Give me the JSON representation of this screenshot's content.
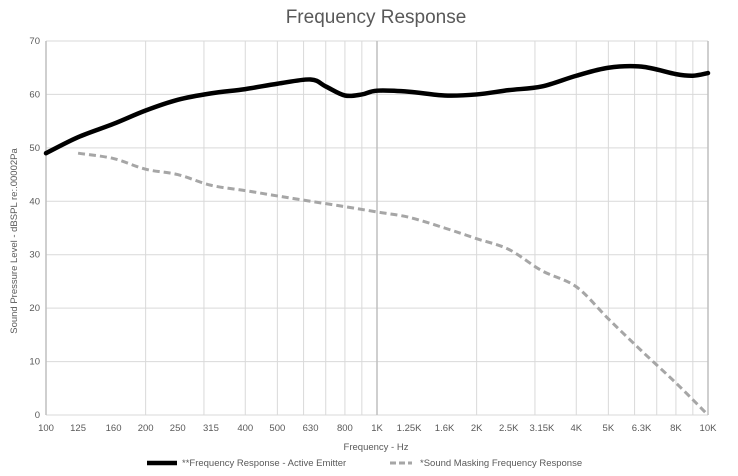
{
  "chart_data": {
    "type": "line",
    "title": "Frequency Response",
    "xlabel": "Frequency - Hz",
    "ylabel": "Sound Pressure Level - dBSPL re:.00002Pa",
    "x_scale": "log",
    "xlim": [
      100,
      10000
    ],
    "ylim": [
      0,
      70
    ],
    "y_ticks": [
      0,
      10,
      20,
      30,
      40,
      50,
      60,
      70
    ],
    "x_ticks": [
      {
        "value": 100,
        "label": "100"
      },
      {
        "value": 125,
        "label": "125"
      },
      {
        "value": 160,
        "label": "160"
      },
      {
        "value": 200,
        "label": "200"
      },
      {
        "value": 250,
        "label": "250"
      },
      {
        "value": 315,
        "label": "315"
      },
      {
        "value": 400,
        "label": "400"
      },
      {
        "value": 500,
        "label": "500"
      },
      {
        "value": 630,
        "label": "630"
      },
      {
        "value": 800,
        "label": "800"
      },
      {
        "value": 1000,
        "label": "1K"
      },
      {
        "value": 1250,
        "label": "1.25K"
      },
      {
        "value": 1600,
        "label": "1.6K"
      },
      {
        "value": 2000,
        "label": "2K"
      },
      {
        "value": 2500,
        "label": "2.5K"
      },
      {
        "value": 3150,
        "label": "3.15K"
      },
      {
        "value": 4000,
        "label": "4K"
      },
      {
        "value": 5000,
        "label": "5K"
      },
      {
        "value": 6300,
        "label": "6.3K"
      },
      {
        "value": 8000,
        "label": "8K"
      },
      {
        "value": 10000,
        "label": "10K"
      }
    ],
    "grid": true,
    "legend_position": "bottom",
    "series": [
      {
        "name": "**Frequency Response - Active Emitter",
        "color": "#000000",
        "style": "solid",
        "x": [
          100,
          125,
          160,
          200,
          250,
          315,
          400,
          500,
          630,
          700,
          800,
          900,
          1000,
          1250,
          1600,
          2000,
          2500,
          3150,
          4000,
          5000,
          6300,
          8000,
          9000,
          10000
        ],
        "y": [
          49,
          52,
          54.5,
          57,
          59,
          60.2,
          61,
          62,
          62.8,
          61.5,
          59.8,
          60,
          60.7,
          60.5,
          59.8,
          60,
          60.8,
          61.5,
          63.5,
          65,
          65.2,
          63.8,
          63.5,
          64
        ]
      },
      {
        "name": "*Sound Masking Frequency Response",
        "color": "#a6a6a6",
        "style": "dashed",
        "x": [
          125,
          160,
          200,
          250,
          315,
          400,
          500,
          630,
          800,
          1000,
          1250,
          1600,
          2000,
          2500,
          3150,
          4000,
          5000,
          6300,
          8000,
          10000
        ],
        "y": [
          49,
          48,
          46,
          45,
          43,
          42,
          41,
          40,
          39,
          38,
          37,
          35,
          33,
          31,
          27,
          24,
          18,
          12,
          6,
          0
        ]
      }
    ]
  }
}
